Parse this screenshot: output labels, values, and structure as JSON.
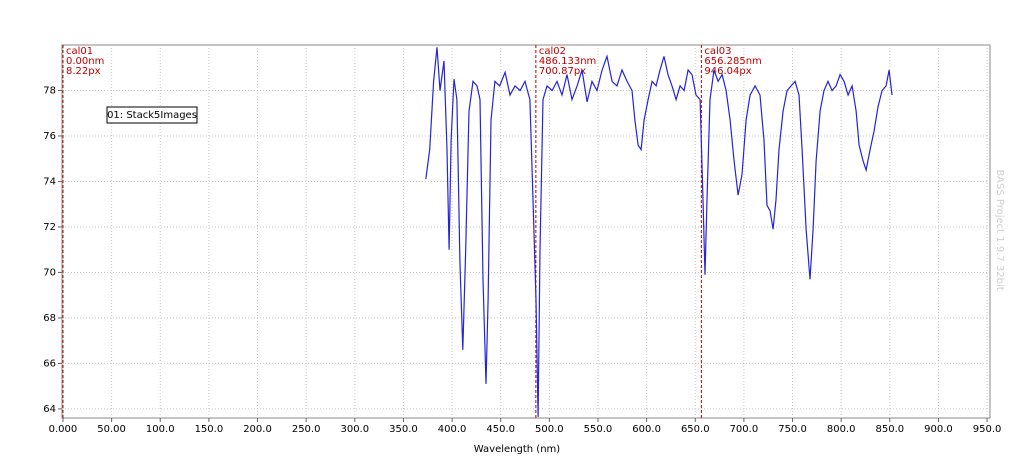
{
  "chart_data": {
    "type": "line",
    "x_label": "Wavelength (nm)",
    "watermark": "BASS Project 1.9.7 32bit",
    "xlim": [
      -1,
      953
    ],
    "ylim": [
      63.6,
      80
    ],
    "xticks": [
      {
        "value": 0,
        "label": "0.000"
      },
      {
        "value": 50,
        "label": "50.00"
      },
      {
        "value": 100,
        "label": "100.0"
      },
      {
        "value": 150,
        "label": "150.0"
      },
      {
        "value": 200,
        "label": "200.0"
      },
      {
        "value": 250,
        "label": "250.0"
      },
      {
        "value": 300,
        "label": "300.0"
      },
      {
        "value": 350,
        "label": "350.0"
      },
      {
        "value": 400,
        "label": "400.0"
      },
      {
        "value": 450,
        "label": "450.0"
      },
      {
        "value": 500,
        "label": "500.0"
      },
      {
        "value": 550,
        "label": "550.0"
      },
      {
        "value": 600,
        "label": "600.0"
      },
      {
        "value": 650,
        "label": "650.0"
      },
      {
        "value": 700,
        "label": "700.0"
      },
      {
        "value": 750,
        "label": "750.0"
      },
      {
        "value": 800,
        "label": "800.0"
      },
      {
        "value": 850,
        "label": "850.0"
      },
      {
        "value": 900,
        "label": "900.0"
      },
      {
        "value": 950,
        "label": "950.0"
      }
    ],
    "yticks": [
      64,
      66,
      68,
      70,
      72,
      74,
      76,
      78
    ],
    "grid": true,
    "calibration_color": "#c00000",
    "calibrations": [
      {
        "x": 0,
        "labels": [
          "cal01",
          "0.00nm",
          "8.22px"
        ]
      },
      {
        "x": 486.133,
        "labels": [
          "cal02",
          "486.133nm",
          "700.87px"
        ]
      },
      {
        "x": 656.285,
        "labels": [
          "cal03",
          "656.285nm",
          "946.04px"
        ]
      }
    ],
    "x": [
      373,
      377,
      381,
      384.5,
      387.6,
      391.7,
      394.8,
      396.9,
      399,
      402,
      405,
      408,
      411,
      414,
      417.4,
      421.5,
      425.6,
      428.7,
      431.8,
      434.9,
      437,
      440,
      444,
      449,
      454.5,
      459.6,
      464.7,
      469.9,
      475,
      480,
      483.2,
      486.3,
      488.4,
      490.4,
      493.5,
      497.6,
      502.8,
      507.9,
      513,
      518.2,
      523.3,
      528.5,
      533.6,
      538.8,
      543.9,
      549,
      554.2,
      559.3,
      564.5,
      569.6,
      574.7,
      579.9,
      585,
      588,
      591.2,
      594.3,
      597.4,
      601.5,
      605.6,
      609.7,
      613.8,
      617.9,
      622,
      626.1,
      630.3,
      634.4,
      638.5,
      642.6,
      646.7,
      650.8,
      655,
      658,
      660,
      662.1,
      665.2,
      669.3,
      673.5,
      677.6,
      681.7,
      685.8,
      689.9,
      694,
      698.1,
      702.3,
      706.4,
      711.5,
      716.6,
      720.7,
      723.8,
      726.9,
      730,
      733,
      736.1,
      740.3,
      744.4,
      748.5,
      752.6,
      756.7,
      759.8,
      763.9,
      768,
      771.1,
      774.2,
      778.3,
      782.4,
      786.5,
      790.7,
      794.8,
      798.9,
      803,
      807.1,
      811.2,
      815.3,
      818.4,
      822.5,
      825.6,
      829.7,
      833.8,
      838,
      842.1,
      846.2,
      849.3,
      852.3
    ],
    "series": [
      {
        "name": "01: Stack5Images",
        "color": "#2424d8",
        "values": [
          74.1,
          75.4,
          78.4,
          79.9,
          78,
          79.3,
          75.4,
          71,
          75.8,
          78.5,
          77.6,
          70.5,
          66.6,
          71,
          77.1,
          78.4,
          78.2,
          77.6,
          69.7,
          65.1,
          68.8,
          76.7,
          78.4,
          78.2,
          78.8,
          77.8,
          78.2,
          78,
          78.4,
          77.6,
          73.2,
          68.8,
          63.65,
          71,
          77.6,
          78.2,
          78,
          78.4,
          77.8,
          78.7,
          77.6,
          78.2,
          78.9,
          77.5,
          78.4,
          78,
          78.9,
          79.5,
          78.4,
          78.2,
          78.9,
          78.4,
          78,
          76.7,
          75.6,
          75.4,
          76.7,
          77.6,
          78.4,
          78.2,
          78.9,
          79.5,
          78.7,
          78.2,
          77.6,
          78.2,
          78,
          78.9,
          78.7,
          77.8,
          77.6,
          73.2,
          69.9,
          73.2,
          77.6,
          78.9,
          78.4,
          78.7,
          78,
          76.7,
          74.9,
          73.4,
          74.3,
          76.7,
          77.8,
          78.2,
          77.8,
          75.8,
          72.95,
          72.7,
          71.9,
          73.2,
          75.4,
          77.1,
          78,
          78.2,
          78.4,
          77.8,
          75.4,
          71.9,
          69.7,
          71.9,
          74.9,
          77.1,
          78,
          78.4,
          78,
          78.2,
          78.7,
          78.4,
          77.8,
          78.2,
          77.1,
          75.6,
          74.9,
          74.5,
          75.4,
          76.2,
          77.3,
          78,
          78.2,
          78.9,
          77.8
        ]
      }
    ]
  }
}
